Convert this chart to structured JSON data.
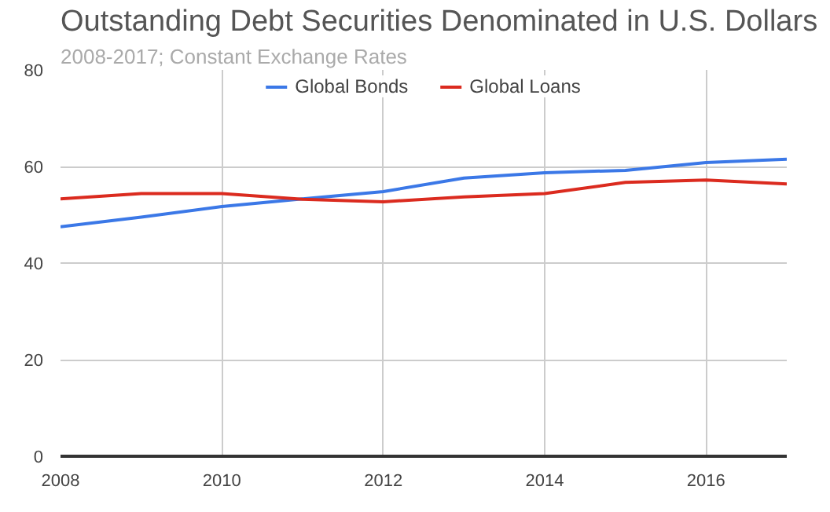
{
  "chart_data": {
    "type": "line",
    "title": "Outstanding Debt Securities Denominated in U.S. Dollars",
    "subtitle": "2008-2017; Constant Exchange Rates",
    "x": [
      2008,
      2009,
      2010,
      2011,
      2012,
      2013,
      2014,
      2015,
      2016,
      2017
    ],
    "series": [
      {
        "name": "Global Bonds",
        "color": "#3b78e7",
        "values": [
          47.5,
          49.5,
          51.7,
          53.3,
          54.8,
          57.6,
          58.7,
          59.2,
          60.8,
          61.5
        ]
      },
      {
        "name": "Global Loans",
        "color": "#db2b1f",
        "values": [
          53.3,
          54.4,
          54.4,
          53.2,
          52.7,
          53.7,
          54.4,
          56.7,
          57.2,
          56.4
        ]
      }
    ],
    "xlim": [
      2008,
      2017
    ],
    "xticks": [
      2008,
      2010,
      2012,
      2014,
      2016
    ],
    "ylim": [
      0,
      80
    ],
    "yticks": [
      0,
      20,
      40,
      60,
      80
    ],
    "grid": true,
    "legend": "top",
    "marker": "none",
    "line_style": "solid"
  }
}
